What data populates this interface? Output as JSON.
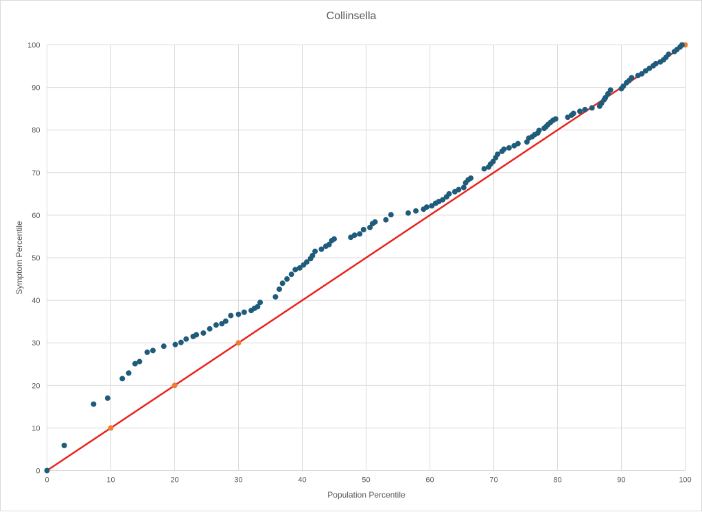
{
  "chart_data": {
    "type": "scatter",
    "title": "Collinsella",
    "xlabel": "Population Percentile",
    "ylabel": "Symptom Percentile",
    "xlim": [
      0,
      100
    ],
    "ylim": [
      0,
      100
    ],
    "grid": true,
    "x_ticks": [
      "0",
      "10",
      "20",
      "30",
      "40",
      "50",
      "60",
      "70",
      "80",
      "90",
      "100"
    ],
    "y_ticks": [
      "0",
      "10",
      "20",
      "30",
      "40",
      "50",
      "60",
      "70",
      "80",
      "90",
      "100"
    ],
    "reference_line": {
      "from": [
        0,
        0
      ],
      "to": [
        100,
        100
      ],
      "color": "#e8221c"
    },
    "colors": {
      "points": "#1f5b7a",
      "highlight": "#ed7d31",
      "grid": "#d9d9d9"
    },
    "series": [
      {
        "values": [
          [
            0,
            0
          ],
          [
            2.7,
            5.9
          ],
          [
            7.3,
            15.6
          ],
          [
            9.5,
            17
          ],
          [
            11.8,
            21.6
          ],
          [
            12.8,
            22.9
          ],
          [
            13.8,
            25.1
          ],
          [
            14.5,
            25.6
          ],
          [
            15.7,
            27.8
          ],
          [
            16.6,
            28.2
          ],
          [
            18.3,
            29.2
          ],
          [
            20.1,
            29.6
          ],
          [
            21,
            30.1
          ],
          [
            21.8,
            30.9
          ],
          [
            22.9,
            31.5
          ],
          [
            23.4,
            31.9
          ],
          [
            24.5,
            32.3
          ],
          [
            25.5,
            33.3
          ],
          [
            26.5,
            34.2
          ],
          [
            27.4,
            34.5
          ],
          [
            28,
            35.1
          ],
          [
            28.8,
            36.4
          ],
          [
            30,
            36.7
          ],
          [
            30.9,
            37.2
          ],
          [
            32,
            37.6
          ],
          [
            32.5,
            38.1
          ],
          [
            33,
            38.5
          ],
          [
            33.4,
            39.5
          ],
          [
            35.8,
            40.8
          ],
          [
            36.4,
            42.6
          ],
          [
            36.9,
            44
          ],
          [
            37.6,
            45
          ],
          [
            38.3,
            46.1
          ],
          [
            38.9,
            47.2
          ],
          [
            39.6,
            47.6
          ],
          [
            40.2,
            48.3
          ],
          [
            40.7,
            49
          ],
          [
            41.3,
            49.8
          ],
          [
            41.6,
            50.5
          ],
          [
            42,
            51.5
          ],
          [
            43,
            52
          ],
          [
            43.7,
            52.7
          ],
          [
            44.2,
            53.1
          ],
          [
            44.6,
            54
          ],
          [
            45,
            54.4
          ],
          [
            47.6,
            54.8
          ],
          [
            48.2,
            55.3
          ],
          [
            49,
            55.6
          ],
          [
            49.6,
            56.6
          ],
          [
            50.6,
            57.1
          ],
          [
            51,
            58
          ],
          [
            51.4,
            58.4
          ],
          [
            53.1,
            58.9
          ],
          [
            53.9,
            60.1
          ],
          [
            56.6,
            60.5
          ],
          [
            57.8,
            61
          ],
          [
            59,
            61.4
          ],
          [
            59.5,
            61.9
          ],
          [
            60.3,
            62.2
          ],
          [
            60.9,
            62.8
          ],
          [
            61.4,
            63.2
          ],
          [
            62,
            63.6
          ],
          [
            62.6,
            64.3
          ],
          [
            63,
            65
          ],
          [
            63.9,
            65.5
          ],
          [
            64.5,
            66
          ],
          [
            65.3,
            66.5
          ],
          [
            65.6,
            67.6
          ],
          [
            66,
            68.3
          ],
          [
            66.4,
            68.7
          ],
          [
            68.5,
            70.9
          ],
          [
            69.2,
            71.3
          ],
          [
            69.5,
            72
          ],
          [
            69.9,
            72.6
          ],
          [
            70.3,
            73.5
          ],
          [
            70.6,
            74.3
          ],
          [
            71.3,
            75
          ],
          [
            71.6,
            75.5
          ],
          [
            72.4,
            75.8
          ],
          [
            73.2,
            76.3
          ],
          [
            73.8,
            76.8
          ],
          [
            75.2,
            77.2
          ],
          [
            75.5,
            78.1
          ],
          [
            76,
            78.4
          ],
          [
            76.4,
            78.9
          ],
          [
            76.9,
            79.3
          ],
          [
            77.1,
            79.9
          ],
          [
            77.9,
            80.4
          ],
          [
            78.2,
            80.8
          ],
          [
            78.5,
            81.3
          ],
          [
            78.9,
            81.8
          ],
          [
            79.3,
            82.3
          ],
          [
            79.7,
            82.6
          ],
          [
            81.6,
            83
          ],
          [
            82.2,
            83.5
          ],
          [
            82.5,
            83.9
          ],
          [
            83.5,
            84.4
          ],
          [
            84.3,
            84.8
          ],
          [
            85.4,
            85.2
          ],
          [
            86.6,
            85.6
          ],
          [
            86.9,
            86.3
          ],
          [
            87.3,
            87.1
          ],
          [
            87.5,
            87.6
          ],
          [
            87.9,
            88.5
          ],
          [
            88.3,
            89.4
          ],
          [
            90,
            89.7
          ],
          [
            90.3,
            90.3
          ],
          [
            90.8,
            91.1
          ],
          [
            91.2,
            91.6
          ],
          [
            91.6,
            92.3
          ],
          [
            92.6,
            92.8
          ],
          [
            93.2,
            93.2
          ],
          [
            93.8,
            93.9
          ],
          [
            94.4,
            94.5
          ],
          [
            95,
            95.1
          ],
          [
            95.4,
            95.6
          ],
          [
            96.1,
            96
          ],
          [
            96.6,
            96.5
          ],
          [
            97,
            97.1
          ],
          [
            97.4,
            97.8
          ],
          [
            98.3,
            98.4
          ],
          [
            98.7,
            98.9
          ],
          [
            99.2,
            99.5
          ],
          [
            99.5,
            100
          ]
        ]
      }
    ],
    "highlighted_points": [
      [
        10,
        10
      ],
      [
        20,
        20
      ],
      [
        30,
        30
      ],
      [
        100,
        100
      ]
    ]
  }
}
